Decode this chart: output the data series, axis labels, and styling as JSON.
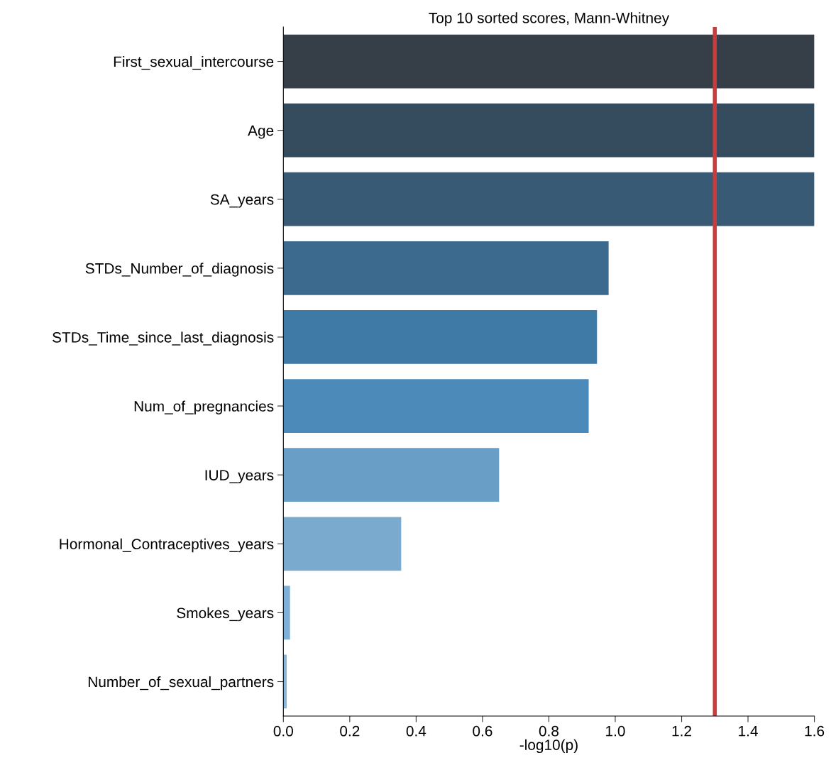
{
  "chart_data": {
    "type": "bar",
    "orientation": "horizontal",
    "title": "Top 10 sorted scores, Mann-Whitney",
    "xlabel": "-log10(p)",
    "categories": [
      "First_sexual_intercourse",
      "Age",
      "SA_years",
      "STDs_Number_of_diagnosis",
      "STDs_Time_since_last_diagnosis",
      "Num_of_pregnancies",
      "IUD_years",
      "Hormonal_Contraceptives_years",
      "Smokes_years",
      "Number_of_sexual_partners"
    ],
    "values": [
      1.6,
      1.6,
      1.6,
      0.98,
      0.945,
      0.92,
      0.65,
      0.355,
      0.02,
      0.01
    ],
    "colors": [
      "#363e47",
      "#354b5e",
      "#385a74",
      "#3b6a8e",
      "#3f7aa7",
      "#4b8ab9",
      "#699fc6",
      "#7aaace",
      "#7fb0d6",
      "#88b7db"
    ],
    "xlim": [
      0,
      1.6
    ],
    "xticks": [
      {
        "value": 0,
        "label": "0.0"
      },
      {
        "value": 0.2,
        "label": "0.2"
      },
      {
        "value": 0.4,
        "label": "0.4"
      },
      {
        "value": 0.6,
        "label": "0.6"
      },
      {
        "value": 0.8,
        "label": "0.8"
      },
      {
        "value": 1.0,
        "label": "1.0"
      },
      {
        "value": 1.2,
        "label": "1.2"
      },
      {
        "value": 1.4,
        "label": "1.4"
      },
      {
        "value": 1.6,
        "label": "1.6"
      }
    ],
    "ref_lines": [
      {
        "axis": "x",
        "value": 1.3,
        "color": "#cc3b3b"
      }
    ],
    "grid": false,
    "legend": false
  }
}
